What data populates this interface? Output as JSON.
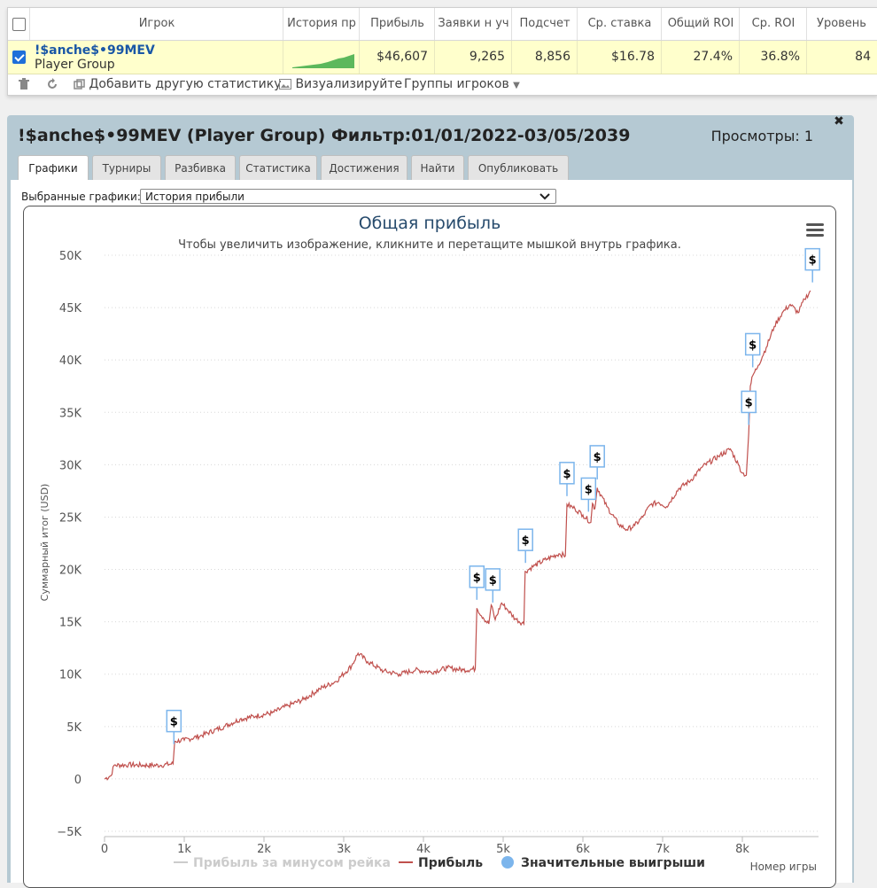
{
  "grid": {
    "columns": [
      "Игрок",
      "История пр",
      "Прибыль",
      "Заявки н уч",
      "Подсчет",
      "Ср. ставка",
      "Общий ROI",
      "Ср. ROI",
      "Уровень"
    ],
    "row": {
      "selected": true,
      "name": "!$anche$•99MEV",
      "group": "Player Group",
      "profit": "$46,607",
      "entries": "9,265",
      "count": "8,856",
      "avg_stake": "$16.78",
      "total_roi": "27.4%",
      "avg_roi": "36.8%",
      "level": "84"
    },
    "toolbar": {
      "add_stat": "Добавить другую статистику",
      "visualize": "Визуализируйте",
      "groups": "Группы игроков"
    }
  },
  "panel": {
    "title": "!$anche$•99MEV (Player Group) Фильтр:01/01/2022-03/05/2039",
    "views": "Просмотры: 1",
    "tabs": [
      "Графики",
      "Турниры",
      "Разбивка",
      "Статистика",
      "Достижения",
      "Найти",
      "Опубликовать"
    ],
    "active_tab": "Графики",
    "select_label": "Выбранные графики:",
    "select_value": "История прибыли"
  },
  "chart_data": {
    "type": "line",
    "title": "Общая прибыль",
    "subtitle": "Чтобы увеличить изображение, кликните и перетащите мышкой внутрь графика.",
    "xlabel": "Номер игры",
    "ylabel": "Суммарный итог (USD)",
    "xlim": [
      0,
      8856
    ],
    "ylim": [
      -5000,
      50000
    ],
    "x_ticks": [
      0,
      1000,
      2000,
      3000,
      4000,
      5000,
      6000,
      7000,
      8000
    ],
    "x_tick_labels": [
      "0",
      "1k",
      "2k",
      "3k",
      "4k",
      "5k",
      "6k",
      "7k",
      "8k"
    ],
    "y_ticks": [
      -5000,
      0,
      5000,
      10000,
      15000,
      20000,
      25000,
      30000,
      35000,
      40000,
      45000,
      50000
    ],
    "y_tick_labels": [
      "−5K",
      "0",
      "5K",
      "10K",
      "15K",
      "20K",
      "25K",
      "30K",
      "35K",
      "40K",
      "45K",
      "50K"
    ],
    "legend": [
      "Прибыль за минусом рейка",
      "Прибыль",
      "Значительные выигрыши"
    ],
    "legend_position": "bottom",
    "marker_label": "$",
    "colors": {
      "profit": "#c0504d",
      "marker": "#7cb5ec",
      "title": "#274b6d"
    },
    "series": [
      {
        "name": "Прибыль",
        "points": [
          [
            0,
            0
          ],
          [
            80,
            300
          ],
          [
            120,
            1300
          ],
          [
            300,
            1350
          ],
          [
            500,
            1300
          ],
          [
            700,
            1300
          ],
          [
            860,
            1450
          ],
          [
            880,
            3600
          ],
          [
            1000,
            3700
          ],
          [
            1200,
            4100
          ],
          [
            1500,
            5000
          ],
          [
            1700,
            5700
          ],
          [
            1900,
            6000
          ],
          [
            2100,
            6300
          ],
          [
            2300,
            7000
          ],
          [
            2500,
            7600
          ],
          [
            2700,
            8600
          ],
          [
            2900,
            9300
          ],
          [
            3100,
            10800
          ],
          [
            3180,
            12000
          ],
          [
            3300,
            11200
          ],
          [
            3500,
            10300
          ],
          [
            3700,
            10000
          ],
          [
            3900,
            10400
          ],
          [
            4100,
            10200
          ],
          [
            4300,
            10600
          ],
          [
            4500,
            10400
          ],
          [
            4650,
            10500
          ],
          [
            4670,
            16300
          ],
          [
            4750,
            15400
          ],
          [
            4820,
            14800
          ],
          [
            4850,
            16600
          ],
          [
            4900,
            15200
          ],
          [
            4980,
            16800
          ],
          [
            5050,
            16200
          ],
          [
            5150,
            15300
          ],
          [
            5260,
            14800
          ],
          [
            5275,
            19800
          ],
          [
            5400,
            20400
          ],
          [
            5550,
            21000
          ],
          [
            5700,
            21500
          ],
          [
            5780,
            21300
          ],
          [
            5800,
            26200
          ],
          [
            5900,
            25800
          ],
          [
            6000,
            25200
          ],
          [
            6100,
            24500
          ],
          [
            6120,
            26300
          ],
          [
            6150,
            25800
          ],
          [
            6180,
            27800
          ],
          [
            6300,
            26000
          ],
          [
            6450,
            24300
          ],
          [
            6550,
            23800
          ],
          [
            6650,
            24200
          ],
          [
            6750,
            25000
          ],
          [
            6850,
            26200
          ],
          [
            6950,
            26400
          ],
          [
            7050,
            26000
          ],
          [
            7200,
            27700
          ],
          [
            7350,
            28500
          ],
          [
            7500,
            29800
          ],
          [
            7700,
            30800
          ],
          [
            7850,
            31500
          ],
          [
            7950,
            30000
          ],
          [
            8000,
            29200
          ],
          [
            8050,
            29000
          ],
          [
            8080,
            33000
          ],
          [
            8100,
            37500
          ],
          [
            8130,
            38500
          ],
          [
            8200,
            39500
          ],
          [
            8300,
            41200
          ],
          [
            8400,
            43200
          ],
          [
            8500,
            44500
          ],
          [
            8600,
            45300
          ],
          [
            8700,
            44500
          ],
          [
            8780,
            45800
          ],
          [
            8856,
            46607
          ]
        ]
      }
    ],
    "markers_x": [
      870,
      4670,
      4870,
      5280,
      5800,
      6070,
      6180,
      8080,
      8130,
      8880
    ]
  }
}
